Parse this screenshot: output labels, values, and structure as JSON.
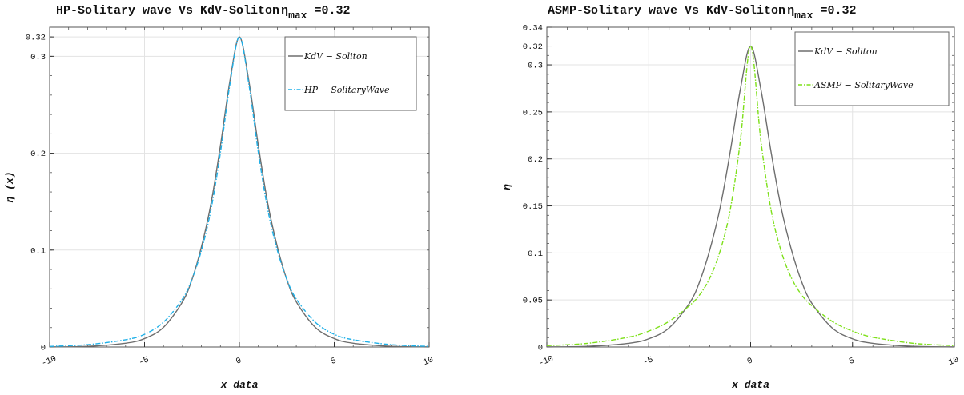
{
  "chart_data": [
    {
      "type": "line",
      "title": "HP-Solitary wave Vs KdV-Soliton",
      "title_suffix_symbol": "η",
      "title_suffix_subscript": "max",
      "title_suffix_value": " =0.32",
      "xlabel": "x data",
      "ylabel": "η (x)",
      "xlim": [
        -10,
        10
      ],
      "ylim": [
        0,
        0.33
      ],
      "xticks": [
        -10,
        -5,
        0,
        5,
        10
      ],
      "xtick_labels": [
        "-10",
        "-5",
        "0",
        "5",
        "10"
      ],
      "yticks": [
        0,
        0.1,
        0.2,
        0.3,
        0.32
      ],
      "ytick_labels": [
        "0",
        "0.1",
        "0.2",
        "0.3",
        "0.32"
      ],
      "grid": true,
      "legend_position": "top-right",
      "amplitude": 0.32,
      "series": [
        {
          "name": "KdV − Soliton",
          "color": "#6e6e6e",
          "style": "solid",
          "x": [
            -10,
            -8,
            -6,
            -5,
            -4,
            -3,
            -2.5,
            -2,
            -1.5,
            -1,
            -0.5,
            0,
            0.5,
            1,
            1.5,
            2,
            2.5,
            3,
            4,
            5,
            6,
            8,
            10
          ],
          "y": [
            0.0001,
            0.0007,
            0.0039,
            0.0087,
            0.0203,
            0.0466,
            0.0696,
            0.1035,
            0.1478,
            0.2078,
            0.2745,
            0.32,
            0.2745,
            0.2078,
            0.1478,
            0.1035,
            0.0696,
            0.0466,
            0.0203,
            0.0087,
            0.0039,
            0.0007,
            0.0001
          ]
        },
        {
          "name": "HP − SolitaryWave",
          "color": "#1fb0e8",
          "style": "dashdot",
          "x": [
            -10,
            -8,
            -6,
            -5,
            -4,
            -3,
            -2.5,
            -2,
            -1.5,
            -1,
            -0.5,
            0,
            0.5,
            1,
            1.5,
            2,
            2.5,
            3,
            4,
            5,
            6,
            8,
            10
          ],
          "y": [
            0.0006,
            0.0024,
            0.0075,
            0.0131,
            0.0256,
            0.0495,
            0.0699,
            0.0998,
            0.1415,
            0.2006,
            0.2711,
            0.32,
            0.2711,
            0.2006,
            0.1415,
            0.0998,
            0.0699,
            0.0495,
            0.0256,
            0.0131,
            0.0075,
            0.0024,
            0.0006
          ]
        }
      ]
    },
    {
      "type": "line",
      "title": "ASMP-Solitary wave Vs KdV-Soliton",
      "title_suffix_symbol": "η",
      "title_suffix_subscript": "max",
      "title_suffix_value": " =0.32",
      "xlabel": "x data",
      "ylabel": "η",
      "xlim": [
        -10,
        10
      ],
      "ylim": [
        0,
        0.34
      ],
      "xticks": [
        -10,
        -5,
        0,
        5,
        10
      ],
      "xtick_labels": [
        "-10",
        "-5",
        "0",
        "5",
        "10"
      ],
      "yticks": [
        0,
        0.05,
        0.1,
        0.15,
        0.2,
        0.25,
        0.3,
        0.32,
        0.34
      ],
      "ytick_labels": [
        "0",
        "0.05",
        "0.1",
        "0.15",
        "0.2",
        "0.25",
        "0.3",
        "0.32",
        "0.34"
      ],
      "grid": true,
      "legend_position": "top-right",
      "amplitude": 0.32,
      "series": [
        {
          "name": "KdV − Soliton",
          "color": "#6e6e6e",
          "style": "solid",
          "x": [
            -10,
            -8,
            -6,
            -5,
            -4,
            -3,
            -2.5,
            -2,
            -1.5,
            -1,
            -0.5,
            0,
            0.5,
            1,
            1.5,
            2,
            2.5,
            3,
            4,
            5,
            6,
            8,
            10
          ],
          "y": [
            0.0001,
            0.0007,
            0.0039,
            0.0087,
            0.0203,
            0.0466,
            0.0696,
            0.1035,
            0.1478,
            0.2078,
            0.2745,
            0.32,
            0.2745,
            0.2078,
            0.1478,
            0.1035,
            0.0696,
            0.0466,
            0.0203,
            0.0087,
            0.0039,
            0.0007,
            0.0001
          ]
        },
        {
          "name": "ASMP − SolitaryWave",
          "color": "#7ee01a",
          "style": "dashdot",
          "x": [
            -10,
            -8,
            -6,
            -5,
            -4,
            -3,
            -2.5,
            -2,
            -1.5,
            -1,
            -0.5,
            0,
            0.5,
            1,
            1.5,
            2,
            2.5,
            3,
            4,
            5,
            6,
            8,
            10
          ],
          "y": [
            0.0014,
            0.0039,
            0.0104,
            0.0169,
            0.0273,
            0.044,
            0.0555,
            0.0735,
            0.1018,
            0.146,
            0.22,
            0.32,
            0.22,
            0.146,
            0.1018,
            0.0735,
            0.0555,
            0.044,
            0.0273,
            0.0169,
            0.0104,
            0.0039,
            0.0014
          ]
        }
      ]
    }
  ]
}
